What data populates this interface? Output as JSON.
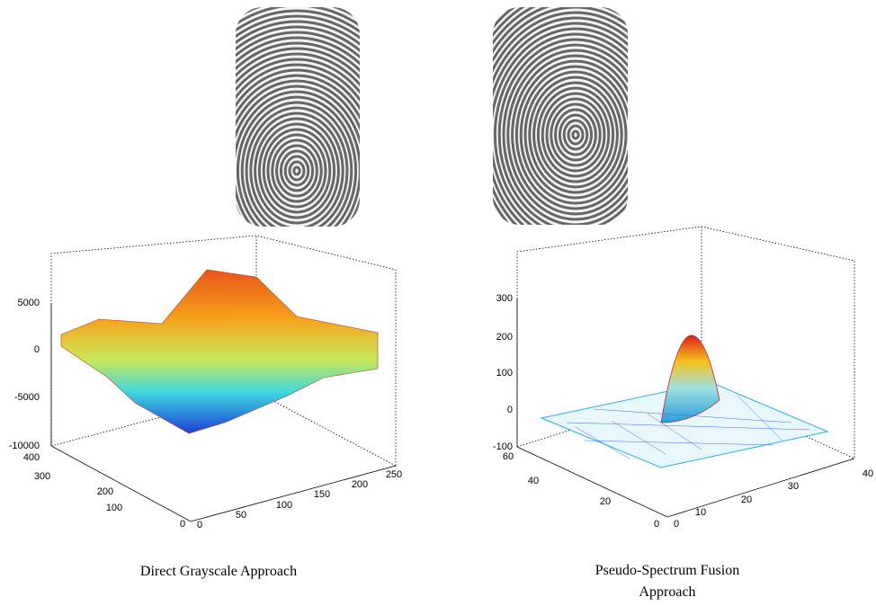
{
  "figure": {
    "panels": [
      {
        "caption": "Direct Grayscale Approach",
        "z_ticks": [
          5000,
          0,
          -5000,
          -10000
        ],
        "y_ticks": [
          400,
          300,
          200,
          100,
          0
        ],
        "x_ticks": [
          0,
          50,
          100,
          150,
          200,
          250
        ]
      },
      {
        "caption": "Pseudo-Spectrum Fusion Approach",
        "z_ticks": [
          300,
          200,
          100,
          0,
          -100
        ],
        "y_ticks": [
          60,
          40,
          20,
          0
        ],
        "x_ticks": [
          0,
          10,
          20,
          30,
          40
        ]
      }
    ]
  }
}
